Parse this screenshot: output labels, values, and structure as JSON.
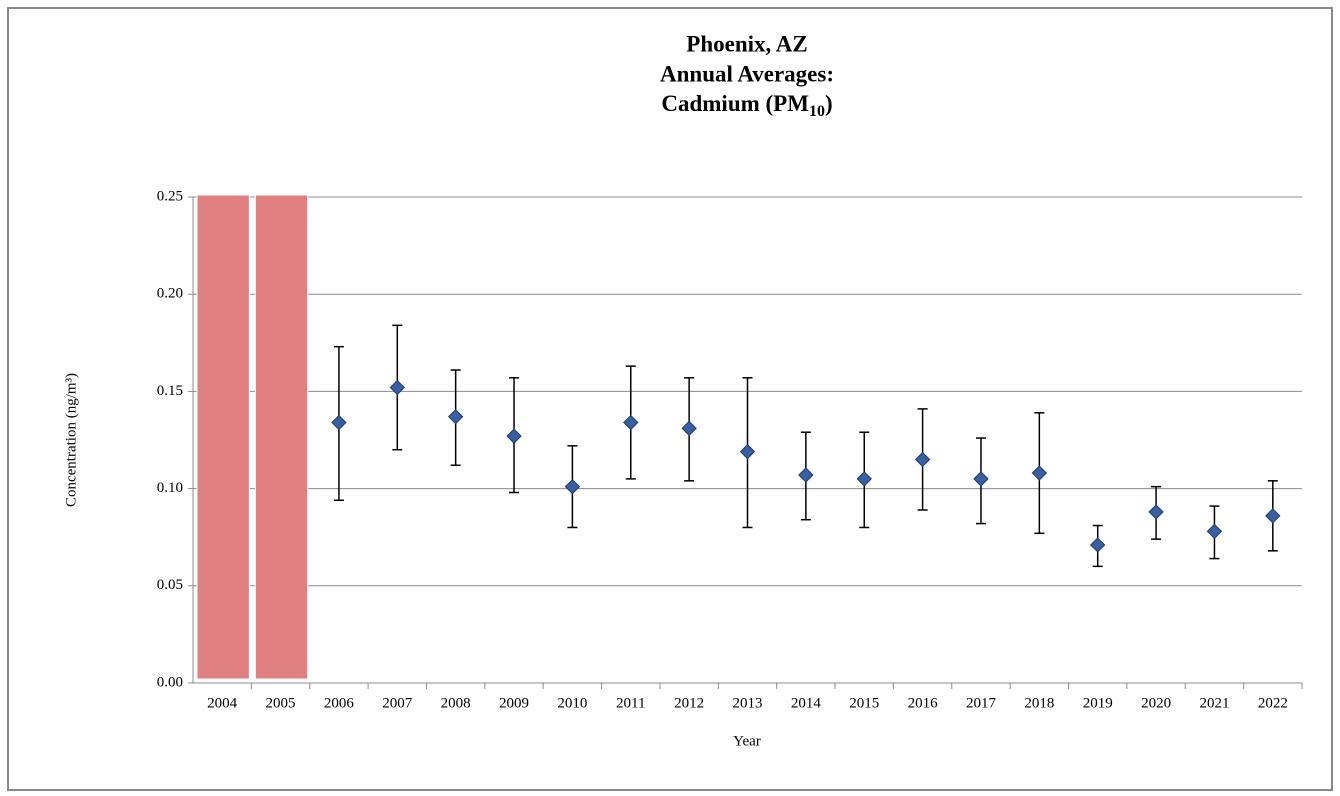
{
  "chart_data": {
    "type": "errorbar",
    "title": [
      "Phoenix, AZ",
      "Annual Averages:",
      {
        "text": "Cadmium (PM",
        "sub": "10",
        "tail": ")"
      }
    ],
    "y_label": "Concentration (ng/m³)",
    "x_label": "Year",
    "categories": [
      "2004",
      "2005",
      "2006",
      "2007",
      "2008",
      "2009",
      "2010",
      "2011",
      "2012",
      "2013",
      "2014",
      "2015",
      "2016",
      "2017",
      "2018",
      "2019",
      "2020",
      "2021",
      "2022"
    ],
    "shaded": [
      true,
      true,
      false,
      false,
      false,
      false,
      false,
      false,
      false,
      false,
      false,
      false,
      false,
      false,
      false,
      false,
      false,
      false,
      false
    ],
    "shade_color": "#e08080",
    "series": [
      {
        "color": "#3a5f9e",
        "values": [
          null,
          null,
          0.134,
          0.152,
          0.137,
          0.127,
          0.101,
          0.134,
          0.131,
          0.119,
          0.107,
          0.105,
          0.115,
          0.105,
          0.108,
          0.071,
          0.088,
          0.078,
          0.086
        ],
        "low": [
          null,
          null,
          0.094,
          0.12,
          0.112,
          0.098,
          0.08,
          0.105,
          0.104,
          0.08,
          0.084,
          0.08,
          0.089,
          0.082,
          0.077,
          0.06,
          0.074,
          0.064,
          0.068
        ],
        "high": [
          null,
          null,
          0.173,
          0.184,
          0.161,
          0.157,
          0.122,
          0.163,
          0.157,
          0.157,
          0.129,
          0.129,
          0.141,
          0.126,
          0.139,
          0.081,
          0.101,
          0.091,
          0.104
        ]
      }
    ],
    "ylim": [
      0,
      0.25
    ],
    "yticks": [
      {
        "value": 0,
        "label": "0.00"
      },
      {
        "value": 0.05,
        "label": "0.05"
      },
      {
        "value": 0.1,
        "label": "0.10"
      },
      {
        "value": 0.15,
        "label": "0.15"
      },
      {
        "value": 0.2,
        "label": "0.20"
      },
      {
        "value": 0.25,
        "label": "0.25"
      }
    ],
    "grid": true
  }
}
